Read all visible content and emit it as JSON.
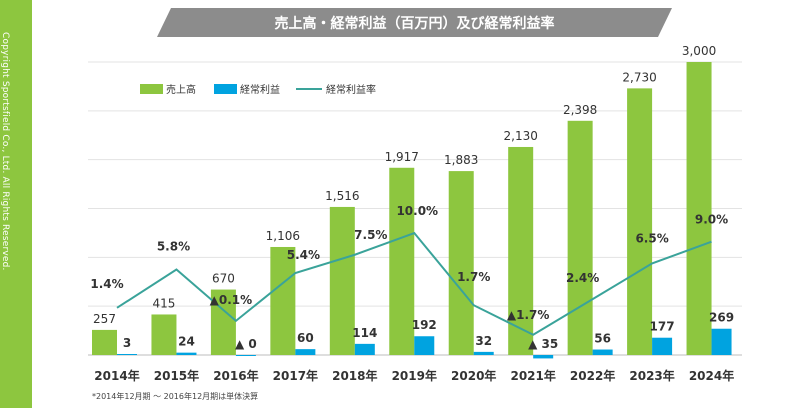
{
  "sidebar": {
    "copyright": "Copyright Sportsfield Co.,  Ltd.  All Rights Reserved."
  },
  "footnote": "*2014年12月期 ～ 2016年12月期は単体決算",
  "chart_data": {
    "type": "bar",
    "title": "売上高・経常利益（百万円）及び経常利益率",
    "categories": [
      "2014年",
      "2015年",
      "2016年",
      "2017年",
      "2018年",
      "2019年",
      "2020年",
      "2021年",
      "2022年",
      "2023年",
      "2024年"
    ],
    "series": [
      {
        "name": "売上高",
        "type": "bar",
        "color": "#8dc63f",
        "values": [
          257,
          415,
          670,
          1106,
          1516,
          1917,
          1883,
          2130,
          2398,
          2730,
          3000
        ],
        "labels": [
          "257",
          "415",
          "670",
          "1,106",
          "1,516",
          "1,917",
          "1,883",
          "2,130",
          "2,398",
          "2,730",
          "3,000"
        ]
      },
      {
        "name": "経常利益",
        "type": "bar",
        "color": "#00a3e0",
        "values": [
          3,
          24,
          -0.4,
          60,
          114,
          192,
          32,
          -35,
          56,
          177,
          269
        ],
        "labels": [
          "3",
          "24",
          "▲ 0",
          "60",
          "114",
          "192",
          "32",
          "▲ 35",
          "56",
          "177",
          "269"
        ]
      },
      {
        "name": "経常利益率",
        "type": "line",
        "color": "#3aa39a",
        "values": [
          1.4,
          5.8,
          -0.1,
          5.4,
          7.5,
          10.0,
          1.7,
          -1.7,
          2.4,
          6.5,
          9.0
        ],
        "labels": [
          "1.4%",
          "5.8%",
          "▲0.1%",
          "5.4%",
          "7.5%",
          "10.0%",
          "1.7%",
          "▲1.7%",
          "2.4%",
          "6.5%",
          "9.0%"
        ]
      }
    ],
    "ylim": [
      -40,
      3000
    ],
    "line_ylim": [
      -4,
      17
    ],
    "grid": true,
    "legend": "top-left"
  }
}
